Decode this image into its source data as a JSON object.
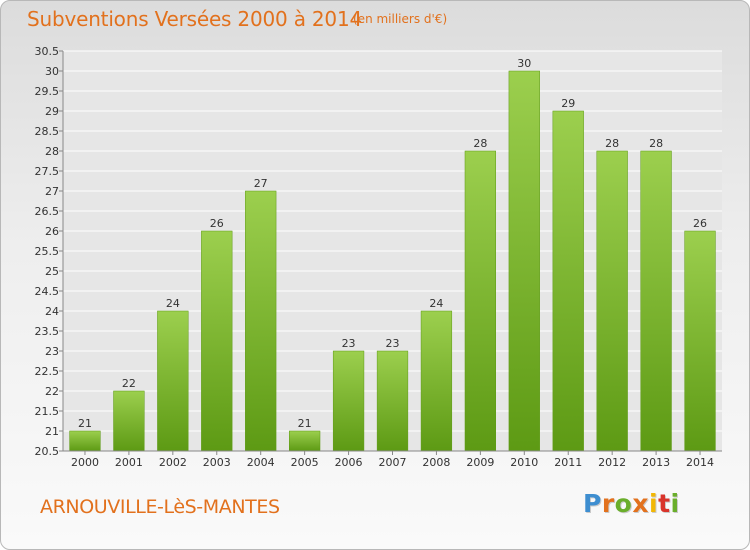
{
  "title": "Subventions Versées 2000 à 2014",
  "unit_note": "(en milliers d'€)",
  "commune": "ARNOUVILLE-LèS-MANTES",
  "logo": {
    "text": "Proxiti",
    "letters": [
      "P",
      "r",
      "o",
      "x",
      "i",
      "t",
      "i"
    ]
  },
  "colors": {
    "text_accent": "#e2711d",
    "bar_top": "#9ccf4e",
    "bar_bottom": "#5d9a14",
    "grid": "#ffffff",
    "plot_bg": "#e6e6e6"
  },
  "chart_data": {
    "type": "bar",
    "categories": [
      "2000",
      "2001",
      "2002",
      "2003",
      "2004",
      "2005",
      "2006",
      "2007",
      "2008",
      "2009",
      "2010",
      "2011",
      "2012",
      "2013",
      "2014"
    ],
    "values": [
      21,
      22,
      24,
      26,
      27,
      21,
      23,
      23,
      24,
      28,
      30,
      29,
      28,
      28,
      26
    ],
    "ylim": [
      20.5,
      30.5
    ],
    "ytick_step": 0.5,
    "yticks": [
      "20.5",
      "21",
      "21.5",
      "22",
      "22.5",
      "23",
      "23.5",
      "24",
      "24.5",
      "25",
      "25.5",
      "26",
      "26.5",
      "27",
      "27.5",
      "28",
      "28.5",
      "29",
      "29.5",
      "30",
      "30.5"
    ],
    "grid": true,
    "legend": "none"
  }
}
